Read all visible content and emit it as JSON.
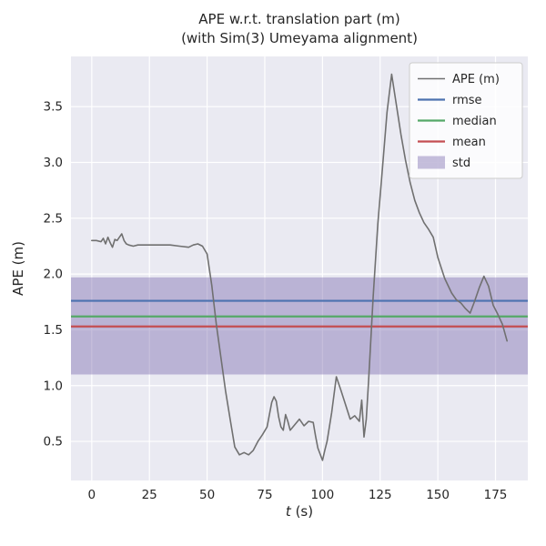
{
  "chart_data": {
    "type": "line",
    "title_line1": "APE w.r.t. translation part (m)",
    "title_line2": "(with Sim(3) Umeyama alignment)",
    "xlabel": {
      "var": "t",
      "unit": "(s)"
    },
    "ylabel": "APE (m)",
    "xlim": [
      -9,
      189
    ],
    "ylim": [
      0.15,
      3.95
    ],
    "xticks": [
      0,
      25,
      50,
      75,
      100,
      125,
      150,
      175
    ],
    "yticks": [
      0.5,
      1.0,
      1.5,
      2.0,
      2.5,
      3.0,
      3.5
    ],
    "grid": true,
    "legend_position": "upper right",
    "colors": {
      "plot_bg": "#eaeaf2",
      "grid": "#ffffff",
      "text": "#262626",
      "ape": "#707070",
      "rmse": "#4c72b0",
      "median": "#55a868",
      "mean": "#c44e52",
      "std": "#8172b2"
    },
    "series": [
      {
        "name": "APE (m)",
        "color": "#707070",
        "x": [
          0,
          2,
          4,
          5,
          6,
          7,
          8,
          9,
          10,
          11,
          12,
          13,
          14,
          15,
          16,
          18,
          20,
          23,
          26,
          30,
          34,
          38,
          42,
          44,
          46,
          48,
          50,
          52,
          54,
          56,
          58,
          60,
          62,
          64,
          66,
          68,
          70,
          72,
          74,
          76,
          78,
          79,
          80,
          81,
          82,
          83,
          84,
          85,
          86,
          88,
          90,
          92,
          94,
          96,
          97,
          98,
          100,
          101,
          102,
          104,
          106,
          108,
          110,
          112,
          114,
          116,
          117,
          118,
          119,
          120,
          122,
          124,
          126,
          128,
          130,
          132,
          134,
          136,
          138,
          140,
          142,
          144,
          146,
          148,
          150,
          153,
          156,
          158,
          160,
          162,
          164,
          166,
          168,
          170,
          172,
          174,
          176,
          178,
          180
        ],
        "y": [
          2.3,
          2.3,
          2.29,
          2.32,
          2.27,
          2.33,
          2.28,
          2.24,
          2.31,
          2.3,
          2.33,
          2.36,
          2.3,
          2.27,
          2.26,
          2.25,
          2.26,
          2.26,
          2.26,
          2.26,
          2.26,
          2.25,
          2.24,
          2.26,
          2.27,
          2.25,
          2.18,
          1.9,
          1.55,
          1.25,
          0.95,
          0.7,
          0.45,
          0.38,
          0.4,
          0.38,
          0.42,
          0.5,
          0.56,
          0.63,
          0.85,
          0.9,
          0.86,
          0.72,
          0.63,
          0.6,
          0.74,
          0.68,
          0.6,
          0.65,
          0.7,
          0.64,
          0.68,
          0.67,
          0.55,
          0.44,
          0.33,
          0.42,
          0.5,
          0.76,
          1.08,
          0.96,
          0.83,
          0.7,
          0.73,
          0.68,
          0.87,
          0.54,
          0.7,
          1.05,
          1.8,
          2.45,
          2.95,
          3.45,
          3.79,
          3.52,
          3.25,
          3.02,
          2.82,
          2.66,
          2.55,
          2.46,
          2.4,
          2.33,
          2.15,
          1.96,
          1.83,
          1.77,
          1.74,
          1.69,
          1.65,
          1.76,
          1.88,
          1.98,
          1.89,
          1.72,
          1.64,
          1.55,
          1.4
        ]
      }
    ],
    "hlines": [
      {
        "name": "rmse",
        "value": 1.76,
        "color": "#4c72b0"
      },
      {
        "name": "median",
        "value": 1.62,
        "color": "#55a868"
      },
      {
        "name": "mean",
        "value": 1.53,
        "color": "#c44e52"
      }
    ],
    "std_band": {
      "name": "std",
      "ymin": 1.1,
      "ymax": 1.97,
      "color": "#8172b2",
      "opacity": 0.45
    },
    "legend": {
      "entries": [
        {
          "label": "APE (m)",
          "color": "#707070",
          "type": "line"
        },
        {
          "label": "rmse",
          "color": "#4c72b0",
          "type": "line"
        },
        {
          "label": "median",
          "color": "#55a868",
          "type": "line"
        },
        {
          "label": "mean",
          "color": "#c44e52",
          "type": "line"
        },
        {
          "label": "std",
          "color": "#8172b2",
          "type": "patch"
        }
      ]
    }
  }
}
